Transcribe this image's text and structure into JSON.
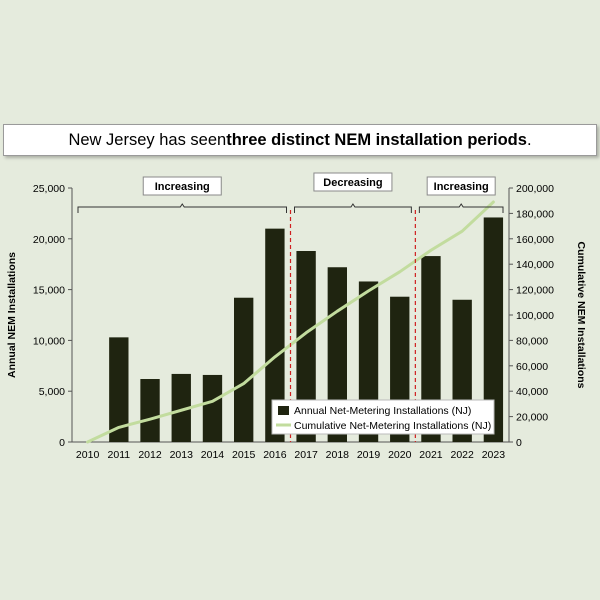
{
  "title": {
    "prefix": "New Jersey has seen ",
    "bold": "three distinct NEM installation periods",
    "suffix": "."
  },
  "chart_data": {
    "type": "bar",
    "categories": [
      "2010",
      "2011",
      "2012",
      "2013",
      "2014",
      "2015",
      "2016",
      "2017",
      "2018",
      "2019",
      "2020",
      "2021",
      "2022",
      "2023"
    ],
    "series": [
      {
        "name": "Annual Net-Metering Installations (NJ)",
        "kind": "bar",
        "axis": "left",
        "color": "#1f2410",
        "values": [
          0,
          10300,
          6200,
          6700,
          6600,
          14200,
          21000,
          18800,
          17200,
          15800,
          14300,
          18300,
          14000,
          22100
        ]
      },
      {
        "name": "Cumulative Net-Metering Installations (NJ)",
        "kind": "line",
        "axis": "right",
        "color": "#c2dc9e",
        "values": [
          0,
          11500,
          18000,
          25000,
          32000,
          46000,
          67000,
          86000,
          103000,
          119000,
          134000,
          151000,
          166000,
          189000
        ]
      }
    ],
    "ylabel": "Annual NEM Installations",
    "y2label": "Cumulative NEM Installations",
    "ylim": [
      0,
      25000
    ],
    "y2lim": [
      0,
      200000
    ],
    "yticks": [
      "0",
      "5,000",
      "10,000",
      "15,000",
      "20,000",
      "25,000"
    ],
    "y2ticks": [
      "0",
      "20,000",
      "40,000",
      "60,000",
      "80,000",
      "100,000",
      "120,000",
      "140,000",
      "160,000",
      "180,000",
      "200,000"
    ],
    "periods": [
      {
        "label": "Increasing",
        "from": "2010",
        "to": "2016"
      },
      {
        "label": "Decreasing",
        "from": "2017",
        "to": "2020"
      },
      {
        "label": "Increasing",
        "from": "2021",
        "to": "2023"
      }
    ],
    "dividers_after": [
      "2016",
      "2020"
    ],
    "divider_color": "#d02020",
    "legend_position": "bottom-right",
    "grid": false
  }
}
